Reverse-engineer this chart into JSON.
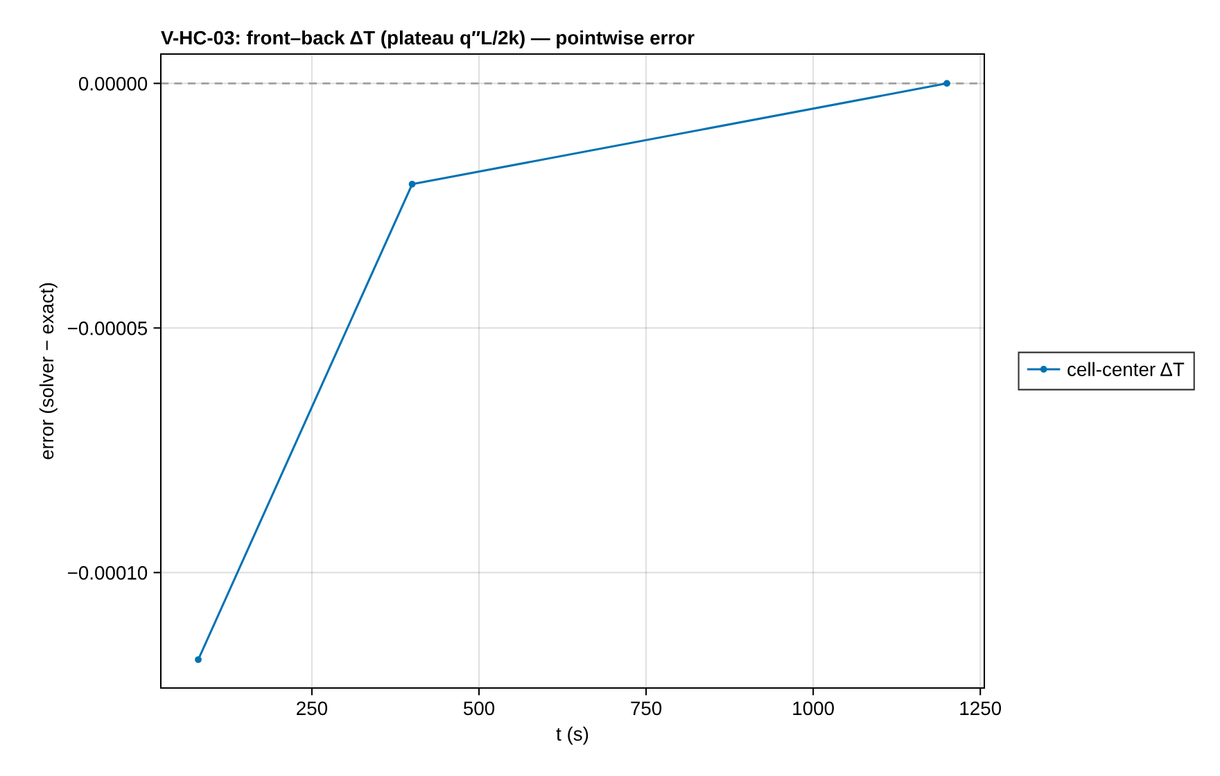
{
  "chart_data": {
    "type": "line",
    "title": "V-HC-03: front–back ΔT (plateau q″L/2k) — pointwise error",
    "xlabel": "t (s)",
    "ylabel": "error (solver − exact)",
    "x": [
      80,
      400,
      1200
    ],
    "series": [
      {
        "name": "cell-center ΔT",
        "color": "#0072b2",
        "values": [
          -0.0001178,
          -2.06e-05,
          0
        ]
      }
    ],
    "xlim": [
      24,
      1256
    ],
    "ylim": [
      -0.0001236,
      6e-06
    ],
    "xticks": [
      250,
      500,
      750,
      1000,
      1250
    ],
    "yticks": [
      {
        "value": 0,
        "label": "0.00000"
      },
      {
        "value": -5e-05,
        "label": "−0.00005"
      },
      {
        "value": -0.0001,
        "label": "−0.00010"
      }
    ],
    "ref_lines": [
      {
        "axis": "y",
        "value": 0,
        "color": "#a0a0a0",
        "line_style": "dashed"
      }
    ],
    "grid": true,
    "legend": "right",
    "marker": "circle",
    "line_style": "solid"
  }
}
